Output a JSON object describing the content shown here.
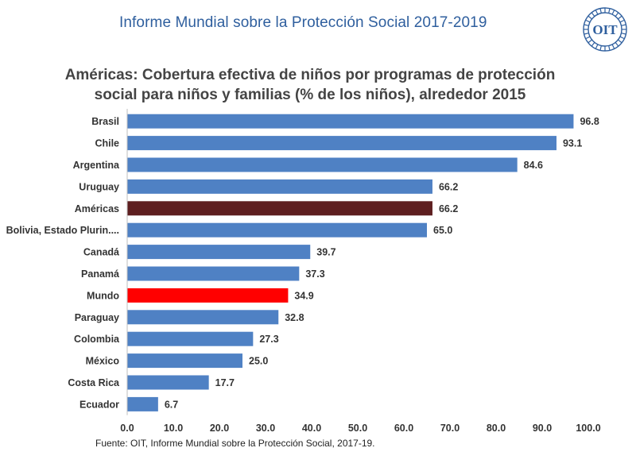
{
  "header": {
    "title": "Informe Mundial sobre la Protección Social 2017-2019",
    "logo_text": "OIT",
    "logo_color": "#2f5f9e"
  },
  "chart_data": {
    "type": "bar",
    "orientation": "horizontal",
    "title_lines": [
      "Américas: Cobertura efectiva de niños por programas de protección",
      "social para niños y familias (% de los niños), alrededor 2015"
    ],
    "categories": [
      "Brasil",
      "Chile",
      "Argentina",
      "Uruguay",
      "Américas",
      "Bolivia, Estado Plurin....",
      "Canadá",
      "Panamá",
      "Mundo",
      "Paraguay",
      "Colombia",
      "México",
      "Costa Rica",
      "Ecuador"
    ],
    "values": [
      96.8,
      93.1,
      84.6,
      66.2,
      66.2,
      65.0,
      39.7,
      37.3,
      34.9,
      32.8,
      27.3,
      25.0,
      17.7,
      6.7
    ],
    "value_labels": [
      "96.8",
      "93.1",
      "84.6",
      "66.2",
      "66.2",
      "65.0",
      "39.7",
      "37.3",
      "34.9",
      "32.8",
      "27.3",
      "25.0",
      "17.7",
      "6.7"
    ],
    "bar_colors": [
      "#4f81c4",
      "#4f81c4",
      "#4f81c4",
      "#4f81c4",
      "#5e1f20",
      "#4f81c4",
      "#4f81c4",
      "#4f81c4",
      "#ff0000",
      "#4f81c4",
      "#4f81c4",
      "#4f81c4",
      "#4f81c4",
      "#4f81c4"
    ],
    "xlim": [
      0,
      100
    ],
    "x_ticks": [
      "0.0",
      "10.0",
      "20.0",
      "30.0",
      "40.0",
      "50.0",
      "60.0",
      "70.0",
      "80.0",
      "90.0",
      "100.0"
    ],
    "grid": false,
    "legend": "none"
  },
  "source": "Fuente: OIT, Informe Mundial sobre la Protección Social, 2017-19."
}
